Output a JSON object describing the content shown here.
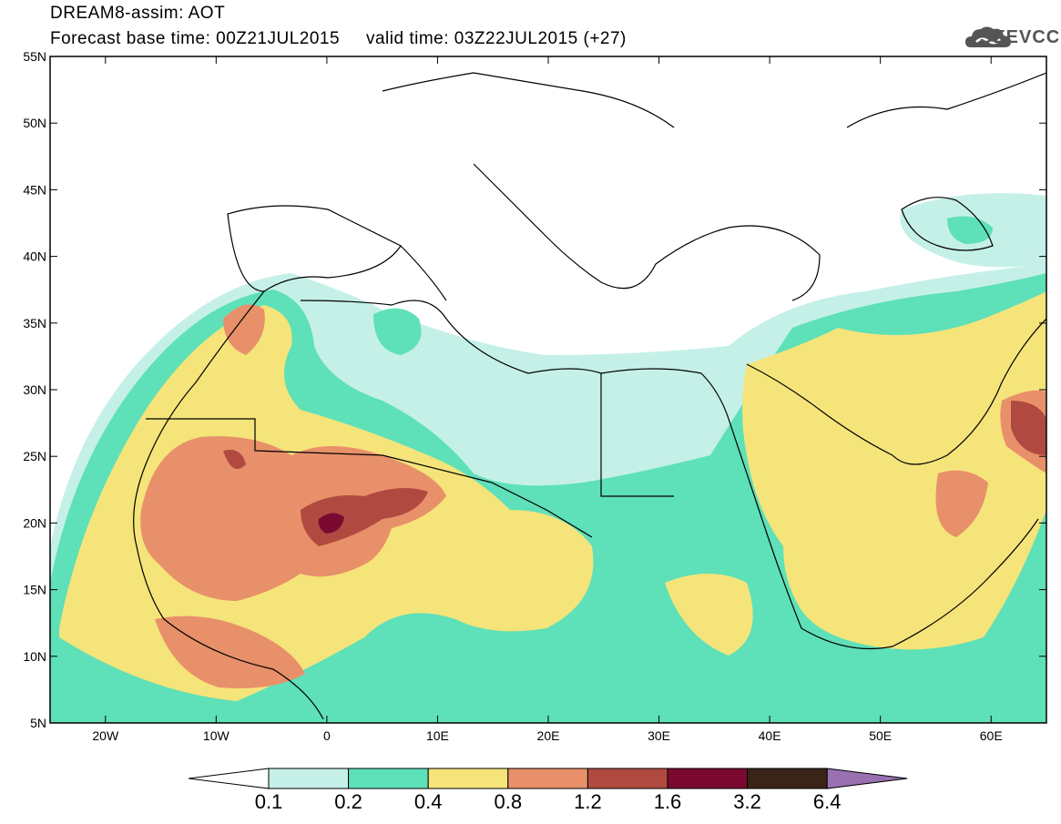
{
  "header": {
    "title": "DREAM8-assim: AOT",
    "base_time_label": "Forecast base time:",
    "base_time": "00Z21JUL2015",
    "valid_time_label": "valid time:",
    "valid_time": "03Z22JUL2015 (+27)"
  },
  "logo": {
    "text": "SEEVCCC",
    "icon": "cloud-icon"
  },
  "map": {
    "projection": "lat-lon",
    "lon_range": [
      -25,
      65
    ],
    "lat_range": [
      5,
      55
    ],
    "lat_ticks": [
      "55N",
      "50N",
      "45N",
      "40N",
      "35N",
      "30N",
      "25N",
      "20N",
      "15N",
      "10N",
      "5N"
    ],
    "lon_ticks": [
      "20W",
      "10W",
      "0",
      "10E",
      "20E",
      "30E",
      "40E",
      "50E",
      "60E"
    ]
  },
  "colorbar": {
    "labels": [
      "0.1",
      "0.2",
      "0.4",
      "0.8",
      "1.2",
      "1.6",
      "3.2",
      "6.4"
    ],
    "colors": [
      "#ffffff",
      "#c4f0e8",
      "#5ee0b8",
      "#f5e47a",
      "#e8906a",
      "#b04a40",
      "#7a0a30",
      "#3a2418",
      "#9a70b0"
    ]
  }
}
